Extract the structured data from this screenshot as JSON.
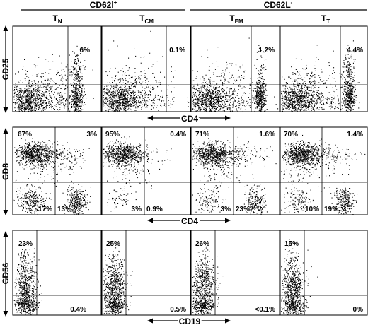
{
  "header": {
    "cd62l_pos": "CD62l",
    "cd62l_pos_sup": "+",
    "cd62l_neg": "CD62L",
    "cd62l_neg_sup": "-",
    "populations": [
      {
        "main": "T",
        "sub": "N"
      },
      {
        "main": "T",
        "sub": "CM"
      },
      {
        "main": "T",
        "sub": "EM"
      },
      {
        "main": "T",
        "sub": "T"
      }
    ]
  },
  "rows": [
    {
      "ylabel": "CD25",
      "xlabel": "CD4",
      "panels": [
        {
          "labels": {
            "tr": "6%"
          }
        },
        {
          "labels": {
            "tr": "0.1%"
          }
        },
        {
          "labels": {
            "tr": "1.2%"
          }
        },
        {
          "labels": {
            "tr": "4.4%"
          }
        }
      ]
    },
    {
      "ylabel": "CD8",
      "xlabel": "CD4",
      "panels": [
        {
          "labels": {
            "tl": "67%",
            "tr": "3%",
            "bl": "17%",
            "br": "13%"
          }
        },
        {
          "labels": {
            "tl": "95%",
            "tr": "0.4%",
            "bl": "3%",
            "br": "0.9%"
          }
        },
        {
          "labels": {
            "tl": "71%",
            "tr": "1.6%",
            "bl": "3%",
            "br": "23%"
          }
        },
        {
          "labels": {
            "tl": "70%",
            "tr": "1.4%",
            "bl": "10%",
            "br": "19%"
          }
        }
      ]
    },
    {
      "ylabel": "CD56",
      "xlabel": "CD19",
      "panels": [
        {
          "labels": {
            "tl": "23%",
            "br": "0.4%"
          }
        },
        {
          "labels": {
            "tl": "25%",
            "br": "0.5%"
          }
        },
        {
          "labels": {
            "tl": "26%",
            "br": "<0.1%"
          }
        },
        {
          "labels": {
            "tl": "15%",
            "br": "0%"
          }
        }
      ]
    }
  ],
  "colors": {
    "ink": "#000000",
    "background": "#ffffff"
  }
}
